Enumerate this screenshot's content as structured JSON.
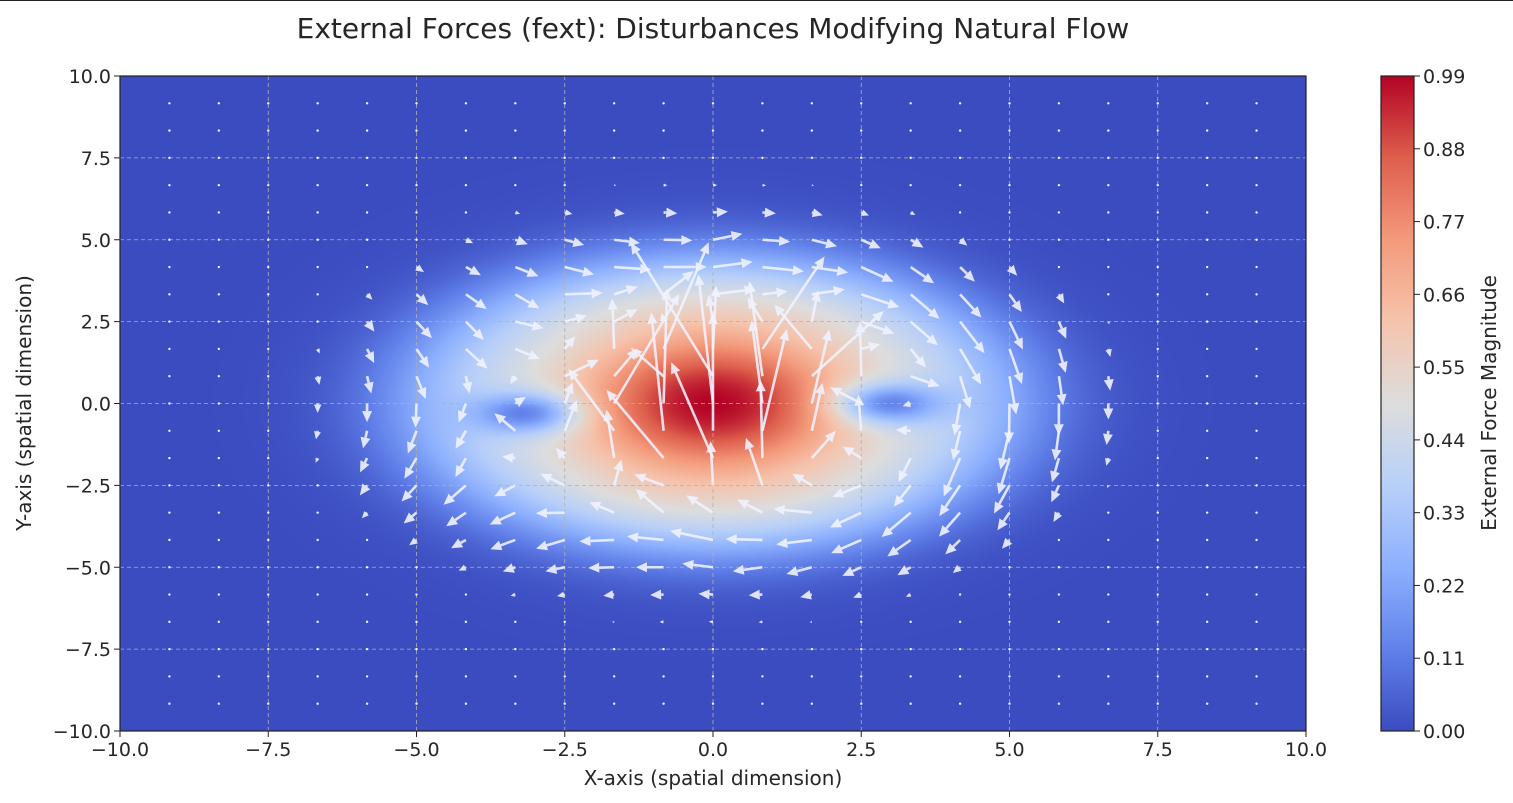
{
  "chart_data": {
    "type": "heatmap",
    "subtype": "filled contour with quiver (vector field)",
    "title": "External Forces (fext): Disturbances Modifying Natural Flow",
    "xlabel": "X-axis (spatial dimension)",
    "ylabel": "Y-axis (spatial dimension)",
    "xlim": [
      -10,
      10
    ],
    "ylim": [
      -10,
      10
    ],
    "xticks": [
      "−10.0",
      "−7.5",
      "−5.0",
      "−2.5",
      "0.0",
      "2.5",
      "5.0",
      "7.5",
      "10.0"
    ],
    "yticks": [
      "−10.0",
      "−7.5",
      "−5.0",
      "−2.5",
      "0.0",
      "2.5",
      "5.0",
      "7.5",
      "10.0"
    ],
    "tick_values": [
      -10,
      -7.5,
      -5,
      -2.5,
      0,
      2.5,
      5,
      7.5,
      10
    ],
    "grid": true,
    "colormap": "coolwarm",
    "colorbar": {
      "label": "External Force Magnitude",
      "range": [
        0,
        0.99
      ],
      "ticks": [
        "0.00",
        "0.11",
        "0.22",
        "0.33",
        "0.44",
        "0.55",
        "0.66",
        "0.77",
        "0.88",
        "0.99"
      ],
      "tick_values": [
        0,
        0.11,
        0.22,
        0.33,
        0.44,
        0.55,
        0.66,
        0.77,
        0.88,
        0.99
      ]
    },
    "magnitude_field": {
      "peak": 0.99,
      "peak_location": [
        0,
        0
      ],
      "low_spots": [
        [
          3,
          0
        ],
        [
          -3.2,
          -0.3
        ]
      ],
      "extent_nonzero_x": [
        -6,
        6
      ],
      "extent_nonzero_y": [
        -5.5,
        5.5
      ]
    },
    "quiver": {
      "grid_x": [
        -10,
        10,
        25
      ],
      "grid_y": [
        -10,
        10,
        25
      ],
      "arrow_color": "#f0f2ff",
      "pattern": "strong upward random disturbances near origin, clockwise circulation at outer ring, near-zero elsewhere"
    },
    "colors": {
      "low": "#3b4cc0",
      "mid": "#dddddd",
      "high": "#b40426"
    }
  }
}
